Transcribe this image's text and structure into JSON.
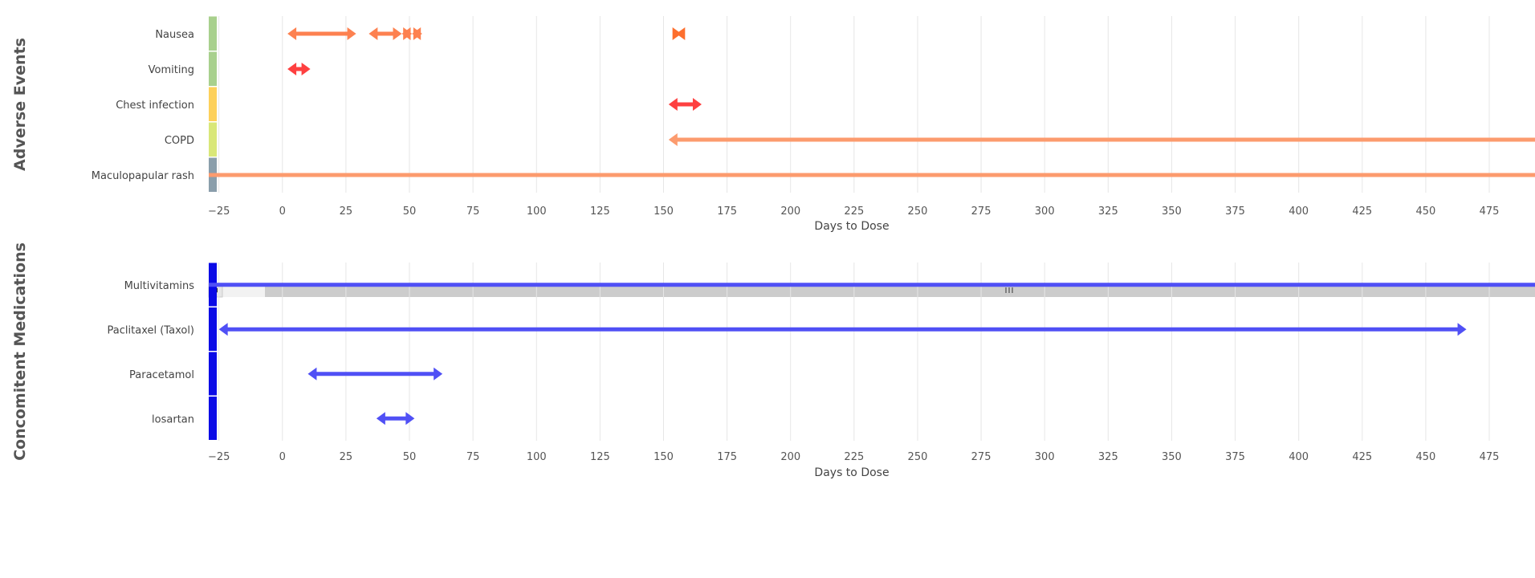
{
  "chart_data": [
    {
      "type": "timeline",
      "title": "Adverse Events",
      "xlabel": "Days to Dose",
      "xlim": [
        -29,
        493
      ],
      "xticks": [
        -25,
        0,
        25,
        50,
        75,
        100,
        125,
        150,
        175,
        200,
        225,
        250,
        275,
        300,
        325,
        350,
        375,
        400,
        425,
        450,
        475
      ],
      "grid": true,
      "rows": [
        {
          "label": "Nausea",
          "severity_color": "#a8d08d",
          "events": [
            {
              "start": 2,
              "end": 29,
              "color": "#fd8150"
            },
            {
              "start": 34,
              "end": 47,
              "color": "#fd8150"
            },
            {
              "start": 47,
              "end": 51,
              "color": "#fd8150"
            },
            {
              "start": 51,
              "end": 55,
              "color": "#fd8150"
            },
            {
              "start": 155,
              "end": 157,
              "color": "#fd6f2e"
            }
          ]
        },
        {
          "label": "Vomiting",
          "severity_color": "#a8d08d",
          "events": [
            {
              "start": 2,
              "end": 11,
              "color": "#fe4040"
            }
          ]
        },
        {
          "label": "Chest infection",
          "severity_color": "#fdd05a",
          "events": [
            {
              "start": 152,
              "end": 165,
              "color": "#fe4040"
            }
          ]
        },
        {
          "label": "COPD",
          "severity_color": "#d9e778",
          "events": [
            {
              "start": 152,
              "end": null,
              "color": "#fc9b6e"
            }
          ]
        },
        {
          "label": "Maculopapular rash",
          "severity_color": "#8a9eab",
          "events": [
            {
              "start": null,
              "end": null,
              "color": "#fc9b6e"
            }
          ]
        }
      ]
    },
    {
      "type": "timeline",
      "title": "Concomitent Medications",
      "xlabel": "Days to Dose",
      "xlim": [
        -29,
        493
      ],
      "xticks": [
        -25,
        0,
        25,
        50,
        75,
        100,
        125,
        150,
        175,
        200,
        225,
        250,
        275,
        300,
        325,
        350,
        375,
        400,
        425,
        450,
        475
      ],
      "grid": true,
      "rows": [
        {
          "label": "Multivitamins",
          "severity_color": "#0a0ae6",
          "events": [
            {
              "start": null,
              "end": null,
              "color": "#5050f5"
            }
          ]
        },
        {
          "label": "Paclitaxel (Taxol)",
          "severity_color": "#0a0ae6",
          "events": [
            {
              "start": -25,
              "end": 466,
              "color": "#5050f5"
            }
          ]
        },
        {
          "label": "Paracetamol",
          "severity_color": "#0a0ae6",
          "events": [
            {
              "start": 10,
              "end": 63,
              "color": "#5050f5"
            }
          ]
        },
        {
          "label": "losartan",
          "severity_color": "#0a0ae6",
          "events": [
            {
              "start": 37,
              "end": 52,
              "color": "#5050f5"
            }
          ]
        }
      ]
    }
  ],
  "scrollbar": {
    "left_arrow_icon": "triangle-left-icon",
    "handle_grip_icon": "grip-lines-icon"
  }
}
